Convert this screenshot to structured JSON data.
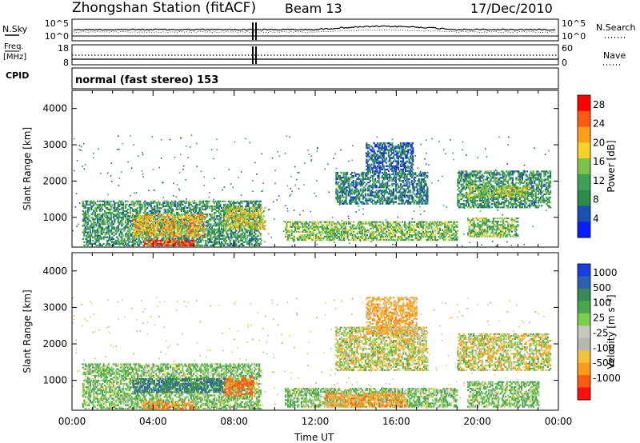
{
  "header": {
    "title": "Zhongshan Station (fitACF)",
    "beam": "Beam 13",
    "date": "17/Dec/2010"
  },
  "top_panels": {
    "nsky_label": "N.Sky",
    "nsearch_label": "N.Search",
    "freq_label": "Freq.",
    "freq_unit": "[MHz]",
    "nave_label": "Nave",
    "cpid_label": "CPID",
    "mode_text": "normal (fast stereo) 153",
    "noise_ticks_left": [
      "10^5",
      "10^0"
    ],
    "noise_ticks_right": [
      "10^5",
      "10^0"
    ],
    "freq_ticks": [
      "18",
      "8"
    ],
    "nave_ticks": [
      "60",
      "0"
    ]
  },
  "colors": {
    "power_scale": [
      "#0a1eff",
      "#1a4fb4",
      "#2d8a4a",
      "#3fa05a",
      "#7dc24a",
      "#f5d32a",
      "#ff9f1a",
      "#ff5a10",
      "#ff0000"
    ],
    "velocity_scale": [
      "#1a3fe0",
      "#2f5fb0",
      "#3a8a55",
      "#49a84e",
      "#7ccf4a",
      "#c8c8c0",
      "#b8b8b0",
      "#f4c23a",
      "#ff9a1a",
      "#ff5a10",
      "#ff1010"
    ]
  },
  "chart_data": [
    {
      "type": "heatmap",
      "title": "Power",
      "xlabel": "Time UT",
      "ylabel": "Slant Range [km]",
      "xlim": [
        "00:00",
        "00:00"
      ],
      "x_ticks": [
        "00:00",
        "04:00",
        "08:00",
        "12:00",
        "16:00",
        "20:00",
        "00:00"
      ],
      "ylim": [
        180,
        4500
      ],
      "y_ticks": [
        1000,
        2000,
        3000,
        4000
      ],
      "colorbar_label": "Power [dB]",
      "colorbar_ticks": [
        "28",
        "24",
        "20",
        "16",
        "12",
        "8",
        "4"
      ],
      "colorbar_range": [
        0,
        30
      ],
      "regions": [
        {
          "t0": 0.5,
          "t1": 9.3,
          "r0": 250,
          "r1": 1500,
          "v": 10
        },
        {
          "t0": 3.0,
          "t1": 6.5,
          "r0": 500,
          "r1": 1100,
          "v": 20
        },
        {
          "t0": 3.5,
          "t1": 6.0,
          "r0": 250,
          "r1": 400,
          "v": 27
        },
        {
          "t0": 7.5,
          "t1": 9.5,
          "r0": 700,
          "r1": 1300,
          "v": 18
        },
        {
          "t0": 10.5,
          "t1": 19.0,
          "r0": 400,
          "r1": 900,
          "v": 14
        },
        {
          "t0": 13.0,
          "t1": 17.5,
          "r0": 1400,
          "r1": 2300,
          "v": 8
        },
        {
          "t0": 14.5,
          "t1": 16.8,
          "r0": 2300,
          "r1": 3100,
          "v": 6
        },
        {
          "t0": 19.0,
          "t1": 23.6,
          "r0": 1300,
          "r1": 2300,
          "v": 10
        },
        {
          "t0": 19.5,
          "t1": 22.5,
          "r0": 1600,
          "r1": 1900,
          "v": 16
        },
        {
          "t0": 19.5,
          "t1": 22.0,
          "r0": 500,
          "r1": 1000,
          "v": 14
        }
      ]
    },
    {
      "type": "heatmap",
      "title": "Velocity",
      "xlabel": "Time UT",
      "ylabel": "Slant Range [km]",
      "xlim": [
        "00:00",
        "00:00"
      ],
      "x_ticks": [
        "00:00",
        "04:00",
        "08:00",
        "12:00",
        "16:00",
        "20:00",
        "00:00"
      ],
      "ylim": [
        180,
        4500
      ],
      "y_ticks": [
        1000,
        2000,
        3000,
        4000
      ],
      "colorbar_label": "Velocity [m s^-1]",
      "colorbar_ticks": [
        "1000",
        "500",
        "100",
        "25",
        "-25",
        "-100",
        "-500",
        "-1000"
      ],
      "regions": [
        {
          "t0": 0.5,
          "t1": 9.3,
          "r0": 250,
          "r1": 1500,
          "v": 100
        },
        {
          "t0": 3.0,
          "t1": 7.5,
          "r0": 700,
          "r1": 1100,
          "v": 500
        },
        {
          "t0": 3.5,
          "t1": 6.0,
          "r0": 250,
          "r1": 450,
          "v": -200
        },
        {
          "t0": 7.5,
          "t1": 9.0,
          "r0": 600,
          "r1": 1100,
          "v": -300
        },
        {
          "t0": 10.5,
          "t1": 19.0,
          "r0": 300,
          "r1": 800,
          "v": 100
        },
        {
          "t0": 12.5,
          "t1": 16.5,
          "r0": 300,
          "r1": 700,
          "v": -150
        },
        {
          "t0": 13.0,
          "t1": 17.5,
          "r0": 1300,
          "r1": 2500,
          "v": 0
        },
        {
          "t0": 14.5,
          "t1": 17.0,
          "r0": 2300,
          "r1": 3300,
          "v": -120
        },
        {
          "t0": 19.0,
          "t1": 23.6,
          "r0": 1300,
          "r1": 2300,
          "v": 0
        },
        {
          "t0": 19.5,
          "t1": 23.0,
          "r0": 300,
          "r1": 1000,
          "v": 100
        }
      ]
    }
  ]
}
